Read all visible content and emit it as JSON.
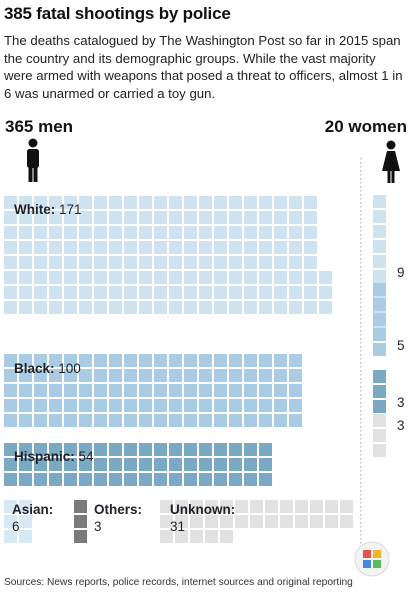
{
  "title": "385 fatal shootings by police",
  "subtitle": "The deaths catalogued by The Washington Post so far in 2015 span the country and its demographic groups. While the vast majority were armed with weapons that posed a threat to officers, almost 1 in 6 was unarmed or carried a toy gun.",
  "source": "Sources: News reports, police records, internet sources and original reporting",
  "chart_data": {
    "type": "table",
    "men": {
      "label": "365 men",
      "total": 365,
      "groups": [
        {
          "name": "White",
          "value": 171,
          "label": "White:",
          "color": "#cfe2f0"
        },
        {
          "name": "Black",
          "value": 100,
          "label": "Black:",
          "color": "#a9cbe3"
        },
        {
          "name": "Hispanic",
          "value": 54,
          "label": "Hispanic:",
          "color": "#7aa9c3"
        },
        {
          "name": "Asian",
          "value": 6,
          "label": "Asian:",
          "color": "#d7e9f4"
        },
        {
          "name": "Others",
          "value": 3,
          "label": "Others:",
          "color": "#7b7b7b"
        },
        {
          "name": "Unknown",
          "value": 31,
          "label": "Unknown:",
          "color": "#e1e1e1"
        }
      ]
    },
    "women": {
      "label": "20 women",
      "total": 20,
      "groups": [
        {
          "name": "White",
          "value": 9,
          "color": "#cfe2f0"
        },
        {
          "name": "Black",
          "value": 5,
          "color": "#a9cbe3"
        },
        {
          "name": "Hispanic",
          "value": 3,
          "color": "#7aa9c3"
        },
        {
          "name": "Unknown",
          "value": 3,
          "color": "#e1e1e1"
        }
      ]
    }
  },
  "icons": {
    "men": "man-icon",
    "women": "woman-icon",
    "watermark": "watermark-logo"
  }
}
